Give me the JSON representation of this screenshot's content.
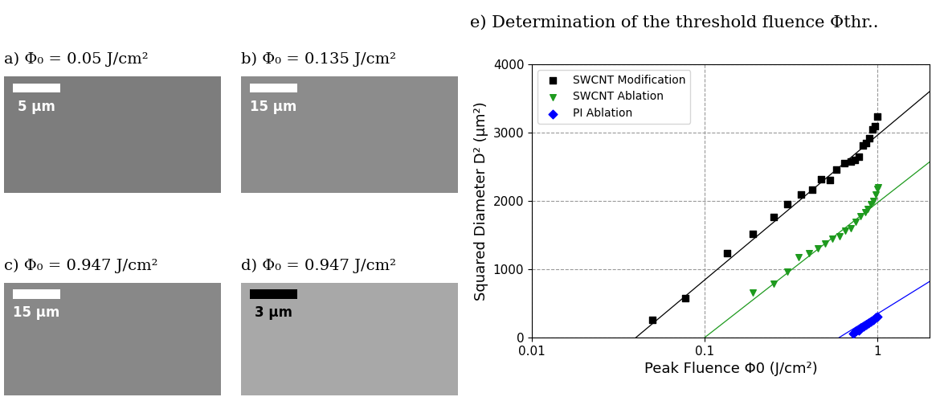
{
  "panels": [
    {
      "title": "a) Φ₀ = 0.05 J/cm²",
      "scale_bar": "5 µm",
      "color": "white"
    },
    {
      "title": "b) Φ₀ = 0.135 J/cm²",
      "scale_bar": "15 µm",
      "color": "white"
    },
    {
      "title": "c) Φ₀ = 0.947 J/cm²",
      "scale_bar": "15 µm",
      "color": "white"
    },
    {
      "title": "d) Φ₀ = 0.947 J/cm²",
      "scale_bar": "3 µm",
      "color": "black"
    }
  ],
  "chart_data": {
    "type": "scatter",
    "title": "e) Determination of the threshold fluence Φthr..",
    "x_label": "Peak Fluence Φ0 (J/cm²)",
    "y_label": "Squared Diameter D² (µm²)",
    "log": "x",
    "grid": true,
    "legend": "upper left",
    "xlim": [
      0.01,
      2
    ],
    "xticks": [
      0.01,
      0.1,
      1
    ],
    "ylim": [
      0,
      4000
    ],
    "yticks": [
      0,
      1000,
      2000,
      3000,
      4000
    ],
    "series": [
      {
        "name": "SWCNT Modification",
        "color": "#000000",
        "marker": "square",
        "x": [
          0.05,
          0.077,
          0.135,
          0.19,
          0.25,
          0.3,
          0.36,
          0.42,
          0.47,
          0.53,
          0.58,
          0.64,
          0.7,
          0.74,
          0.78,
          0.82,
          0.86,
          0.9,
          0.94,
          0.97,
          1.0
        ],
        "values": [
          260,
          580,
          1230,
          1520,
          1770,
          1950,
          2090,
          2170,
          2320,
          2310,
          2460,
          2550,
          2580,
          2600,
          2650,
          2810,
          2850,
          2920,
          3050,
          3090,
          3240
        ],
        "fit": {
          "x": [
            0.04,
            2
          ],
          "values": [
            0,
            3600
          ]
        }
      },
      {
        "name": "SWCNT Ablation",
        "color": "#1e9a1e",
        "marker": "triangle_down",
        "x": [
          0.19,
          0.25,
          0.3,
          0.35,
          0.4,
          0.45,
          0.5,
          0.55,
          0.6,
          0.65,
          0.7,
          0.75,
          0.8,
          0.85,
          0.88,
          0.92,
          0.95,
          0.98,
          1.0,
          1.01
        ],
        "values": [
          660,
          790,
          960,
          1180,
          1230,
          1310,
          1380,
          1450,
          1480,
          1560,
          1600,
          1700,
          1780,
          1840,
          1880,
          1950,
          2000,
          2100,
          2180,
          2200
        ],
        "fit": {
          "x": [
            0.1,
            2
          ],
          "values": [
            0,
            2570
          ]
        }
      },
      {
        "name": "PI Ablation",
        "color": "#0000ff",
        "marker": "diamond",
        "x": [
          0.72,
          0.75,
          0.78,
          0.8,
          0.83,
          0.86,
          0.89,
          0.92,
          0.95,
          0.98,
          1.0
        ],
        "values": [
          60,
          90,
          110,
          140,
          160,
          190,
          210,
          240,
          260,
          290,
          310
        ],
        "fit": {
          "x": [
            0.6,
            2
          ],
          "values": [
            0,
            820
          ]
        }
      }
    ]
  }
}
